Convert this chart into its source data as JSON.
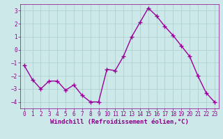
{
  "x": [
    0,
    1,
    2,
    3,
    4,
    5,
    6,
    7,
    8,
    9,
    10,
    11,
    12,
    13,
    14,
    15,
    16,
    17,
    18,
    19,
    20,
    21,
    22,
    23
  ],
  "y": [
    -1.2,
    -2.3,
    -3.0,
    -2.4,
    -2.4,
    -3.1,
    -2.7,
    -3.5,
    -4.0,
    -4.0,
    -1.5,
    -1.6,
    -0.5,
    1.0,
    2.1,
    3.2,
    2.6,
    1.8,
    1.1,
    0.3,
    -0.5,
    -2.0,
    -3.3,
    -4.0
  ],
  "line_color": "#990099",
  "marker": "+",
  "marker_size": 4,
  "marker_lw": 1.0,
  "bg_color": "#cce8e8",
  "grid_color": "#b0d0d0",
  "xlabel": "Windchill (Refroidissement éolien,°C)",
  "xlabel_color": "#880088",
  "ylim": [
    -4.5,
    3.5
  ],
  "xlim": [
    -0.5,
    23.5
  ],
  "yticks": [
    -4,
    -3,
    -2,
    -1,
    0,
    1,
    2,
    3
  ],
  "xticks": [
    0,
    1,
    2,
    3,
    4,
    5,
    6,
    7,
    8,
    9,
    10,
    11,
    12,
    13,
    14,
    15,
    16,
    17,
    18,
    19,
    20,
    21,
    22,
    23
  ],
  "tick_color": "#880088",
  "tick_fontsize": 5.5,
  "xlabel_fontsize": 6.5,
  "line_width": 1.0
}
